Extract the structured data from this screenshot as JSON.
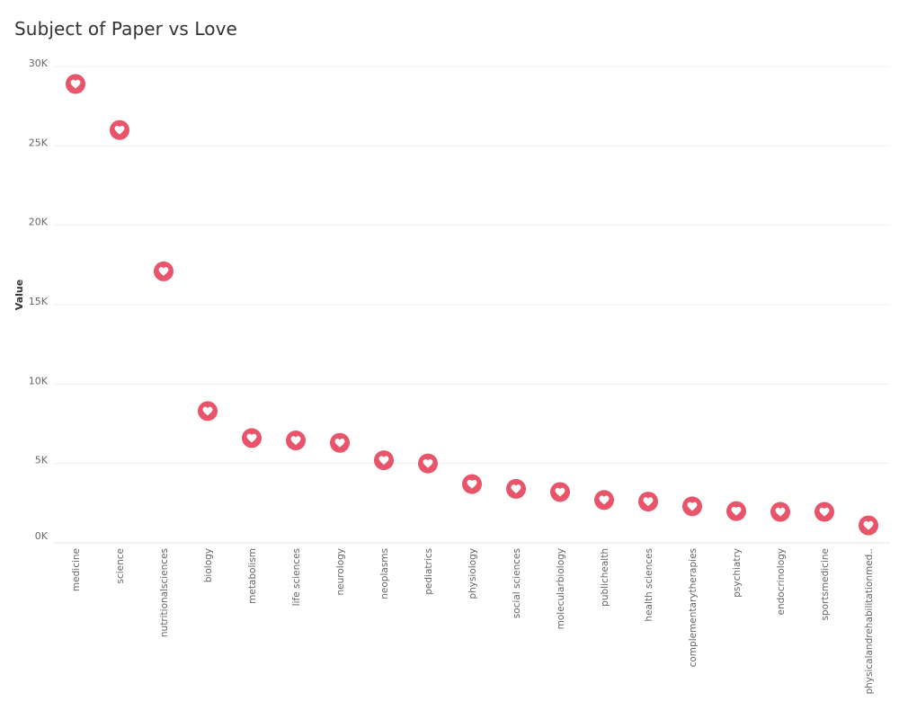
{
  "chart_data": {
    "type": "scatter",
    "title": "Subject of Paper vs Love",
    "xlabel": "",
    "ylabel": "Value",
    "ylim": [
      0,
      30000
    ],
    "yticks": [
      0,
      5000,
      10000,
      15000,
      20000,
      25000,
      30000
    ],
    "ytick_labels": [
      "0K",
      "5K",
      "10K",
      "15K",
      "20K",
      "25K",
      "30K"
    ],
    "grid": true,
    "marker": "heart",
    "color": "#e8546a",
    "categories": [
      "medicine",
      "science",
      "nutritionalsciences",
      "biology",
      "metabolism",
      "life sciences",
      "neurology",
      "neoplasms",
      "pediatrics",
      "physiology",
      "social sciences",
      "molecularbiology",
      "publichealth",
      "health sciences",
      "complementarytherapies",
      "psychiatry",
      "endocrinology",
      "sportsmedicine",
      "physicalandrehabilitationmed.."
    ],
    "values": [
      28900,
      26000,
      17100,
      8300,
      6600,
      6450,
      6300,
      5200,
      5000,
      3700,
      3400,
      3200,
      2700,
      2600,
      2300,
      2000,
      1950,
      1950,
      1100
    ]
  }
}
